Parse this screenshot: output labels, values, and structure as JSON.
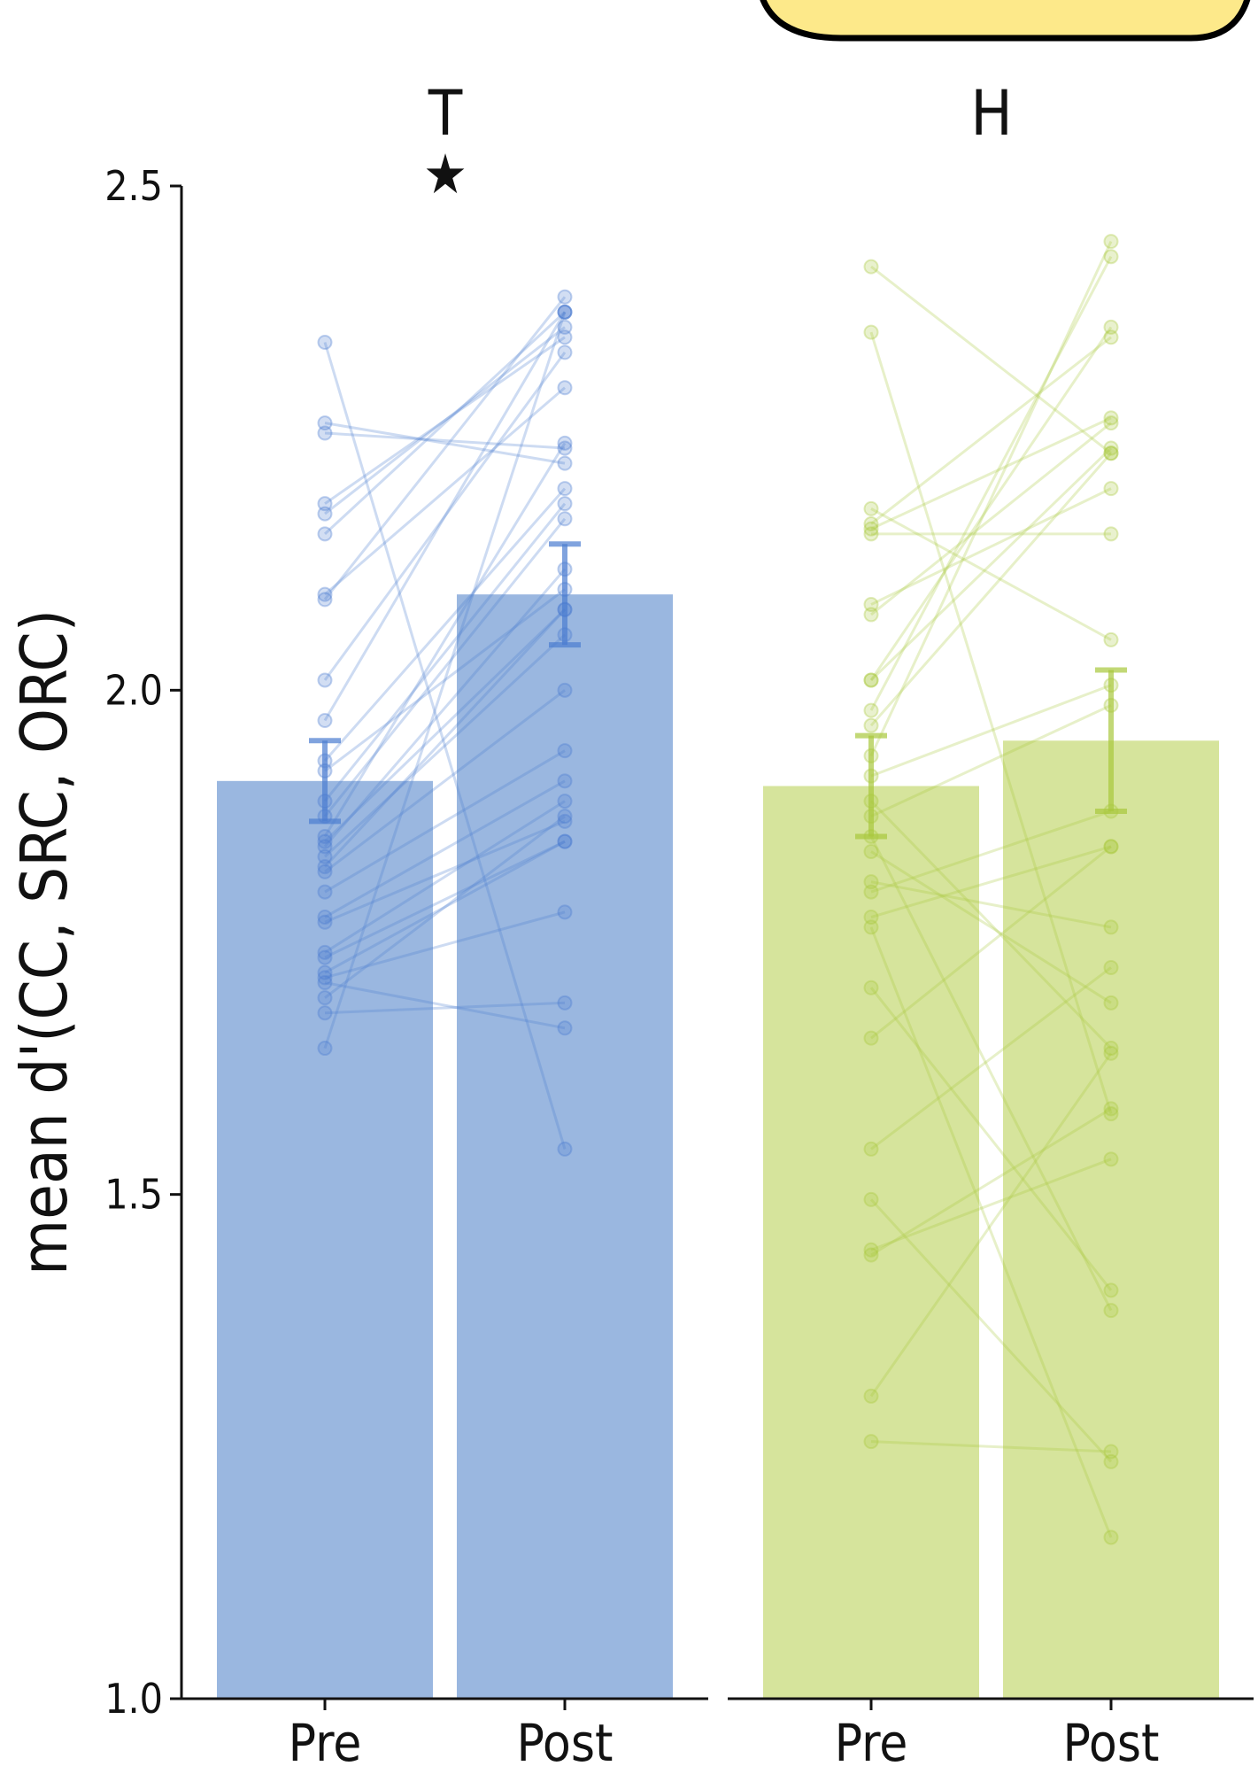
{
  "chart_data": {
    "type": "bar",
    "ylabel": "mean d'(CC, SRC, ORC)",
    "ylim": [
      1.0,
      2.5
    ],
    "yticks": [
      "1.0",
      "1.5",
      "2.0",
      "2.5"
    ],
    "categories": [
      "Pre",
      "Post"
    ],
    "legend_tag_color": "#fde98a",
    "panels": [
      {
        "title": "T",
        "annotation": "★",
        "color": "#4a7cd0",
        "bar_fill": "#9ab7e0",
        "means": [
          1.91,
          2.095
        ],
        "errors": [
          0.04,
          0.05
        ],
        "pairs": [
          [
            2.345,
            1.545
          ],
          [
            2.265,
            2.225
          ],
          [
            2.255,
            2.24
          ],
          [
            2.185,
            2.35
          ],
          [
            2.175,
            2.36
          ],
          [
            2.155,
            2.375
          ],
          [
            2.095,
            2.3
          ],
          [
            2.09,
            2.39
          ],
          [
            2.01,
            2.335
          ],
          [
            1.97,
            2.375
          ],
          [
            1.93,
            2.2
          ],
          [
            1.92,
            2.1
          ],
          [
            1.89,
            2.185
          ],
          [
            1.875,
            2.17
          ],
          [
            1.855,
            2.245
          ],
          [
            1.85,
            2.08
          ],
          [
            1.845,
            2.12
          ],
          [
            1.835,
            2.055
          ],
          [
            1.825,
            2.08
          ],
          [
            1.82,
            2.0
          ],
          [
            1.8,
            1.94
          ],
          [
            1.775,
            1.91
          ],
          [
            1.77,
            1.87
          ],
          [
            1.74,
            1.89
          ],
          [
            1.735,
            1.85
          ],
          [
            1.72,
            1.85
          ],
          [
            1.715,
            1.78
          ],
          [
            1.71,
            1.665
          ],
          [
            1.695,
            1.875
          ],
          [
            1.68,
            1.69
          ],
          [
            1.645,
            2.375
          ]
        ]
      },
      {
        "title": "H",
        "annotation": "",
        "color": "#a8c83c",
        "bar_fill": "#d6e49c",
        "means": [
          1.905,
          1.95
        ],
        "errors": [
          0.05,
          0.07
        ],
        "pairs": [
          [
            2.42,
            2.235
          ],
          [
            2.355,
            1.58
          ],
          [
            2.18,
            2.05
          ],
          [
            2.165,
            2.35
          ],
          [
            2.16,
            2.27
          ],
          [
            2.155,
            2.155
          ],
          [
            2.085,
            2.2
          ],
          [
            2.075,
            2.265
          ],
          [
            2.01,
            2.36
          ],
          [
            2.01,
            2.24
          ],
          [
            1.98,
            2.43
          ],
          [
            1.965,
            2.235
          ],
          [
            1.935,
            2.445
          ],
          [
            1.915,
            2.005
          ],
          [
            1.89,
            1.645
          ],
          [
            1.875,
            1.985
          ],
          [
            1.855,
            1.385
          ],
          [
            1.84,
            1.69
          ],
          [
            1.81,
            1.765
          ],
          [
            1.8,
            1.88
          ],
          [
            1.775,
            1.845
          ],
          [
            1.765,
            1.16
          ],
          [
            1.705,
            1.405
          ],
          [
            1.655,
            1.845
          ],
          [
            1.545,
            1.725
          ],
          [
            1.495,
            1.235
          ],
          [
            1.445,
            1.535
          ],
          [
            1.44,
            1.585
          ],
          [
            1.3,
            1.64
          ],
          [
            1.255,
            1.245
          ]
        ]
      }
    ]
  }
}
